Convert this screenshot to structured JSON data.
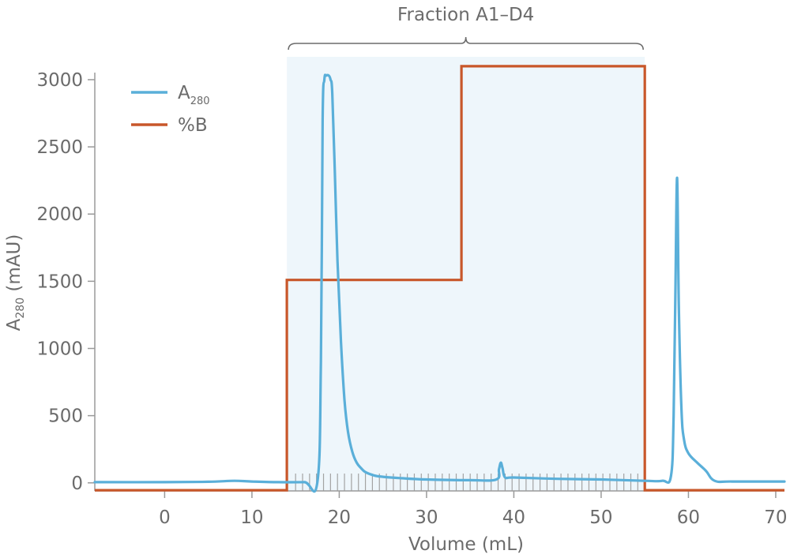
{
  "chart_data": {
    "type": "line",
    "title": "",
    "xlabel": "Volume (mL)",
    "ylabel": {
      "main": "A",
      "sub": "280",
      "rest": " (mAU)"
    },
    "xlim": [
      -8,
      71
    ],
    "ylim": [
      -60,
      3170
    ],
    "x_ticks": [
      0,
      10,
      20,
      30,
      40,
      50,
      60,
      70
    ],
    "y_ticks": [
      0,
      500,
      1000,
      1500,
      2000,
      2500,
      3000
    ],
    "grid": false,
    "legend": "top-left",
    "colors": {
      "a280": "#5aafd9",
      "percent_b": "#c8572a",
      "fraction_shade": "#eef6fb",
      "fraction_tick": "#a3a3a3",
      "text": "#6b6b6b"
    },
    "series": [
      {
        "name": "A280",
        "legend_main": "A",
        "legend_sub": "280",
        "x": [
          -8,
          0,
          5,
          8,
          10,
          13,
          16,
          17.5,
          17.9,
          18.1,
          18.3,
          18.5,
          18.8,
          19.0,
          19.2,
          19.5,
          19.8,
          20.2,
          20.6,
          21.0,
          21.5,
          22.0,
          22.5,
          23,
          24,
          25,
          27,
          30,
          35,
          38,
          38.3,
          38.5,
          38.7,
          39,
          40,
          45,
          50,
          55,
          57,
          58,
          58.3,
          58.5,
          58.7,
          58.9,
          59.2,
          59.5,
          60,
          61,
          62,
          63,
          65,
          71
        ],
        "y": [
          5,
          5,
          8,
          15,
          10,
          5,
          5,
          8,
          900,
          2700,
          3000,
          3030,
          3030,
          3000,
          2900,
          2300,
          1650,
          1050,
          620,
          380,
          230,
          150,
          110,
          80,
          55,
          45,
          35,
          25,
          20,
          25,
          100,
          150,
          110,
          40,
          40,
          30,
          25,
          15,
          15,
          50,
          500,
          1400,
          2270,
          1300,
          550,
          320,
          220,
          150,
          90,
          15,
          10,
          10
        ]
      },
      {
        "name": "%B",
        "x": [
          -8,
          14,
          14,
          34,
          34,
          55,
          55,
          71
        ],
        "y": [
          -55,
          -55,
          1510,
          1510,
          3100,
          3100,
          -55,
          -55
        ]
      }
    ],
    "fraction_region": {
      "x_start": 14,
      "x_end": 55,
      "y_top": 3170,
      "label": "Fraction A1–D4"
    },
    "fraction_ticks": [
      15,
      15.8,
      16.6,
      17.4,
      18.2,
      19.0,
      19.8,
      20.6,
      21.4,
      22.2,
      23.0,
      23.8,
      24.6,
      25.4,
      26.2,
      27.0,
      27.8,
      28.6,
      29.4,
      30.2,
      31.0,
      31.8,
      32.6,
      33.4,
      34.2,
      35.0,
      35.8,
      36.6,
      37.4,
      38.2,
      39.0,
      39.8,
      40.6,
      41.4,
      42.2,
      43.0,
      43.8,
      44.6,
      45.4,
      46.2,
      47.0,
      47.8,
      48.6,
      49.4,
      50.2,
      51.0,
      51.8,
      52.6,
      53.4,
      54.2
    ]
  }
}
